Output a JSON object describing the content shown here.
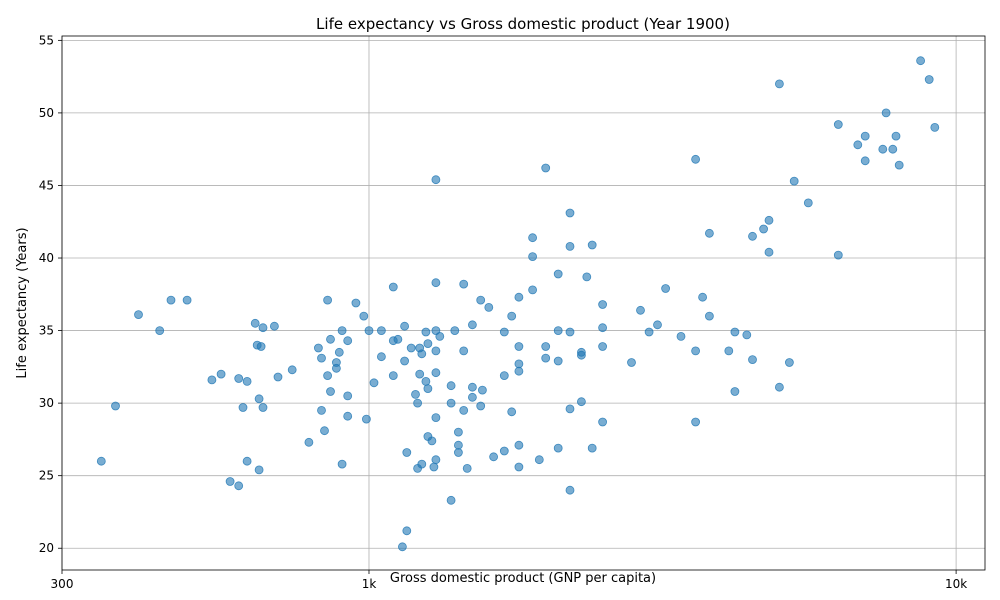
{
  "chart_data": {
    "type": "scatter",
    "title": "Life expectancy vs Gross domestic product (Year 1900)",
    "xlabel": "Gross domestic product (GNP per capita)",
    "ylabel": "Life expectancy (Years)",
    "xscale": "log",
    "xlim": [
      300,
      11200
    ],
    "ylim": [
      18.5,
      55.3
    ],
    "grid": true,
    "color": "#1f77b4",
    "x_ticks": [
      {
        "value": 300,
        "label": "300"
      },
      {
        "value": 1000,
        "label": "1k"
      },
      {
        "value": 10000,
        "label": "10k"
      }
    ],
    "y_ticks": [
      {
        "value": 20,
        "label": "20"
      },
      {
        "value": 25,
        "label": "25"
      },
      {
        "value": 30,
        "label": "30"
      },
      {
        "value": 35,
        "label": "35"
      },
      {
        "value": 40,
        "label": "40"
      },
      {
        "value": 45,
        "label": "45"
      },
      {
        "value": 50,
        "label": "50"
      },
      {
        "value": 55,
        "label": "55"
      }
    ],
    "points": [
      [
        8700,
        53.6
      ],
      [
        9000,
        52.3
      ],
      [
        5000,
        52.0
      ],
      [
        7600,
        50.0
      ],
      [
        9200,
        49.0
      ],
      [
        6300,
        49.2
      ],
      [
        7000,
        48.4
      ],
      [
        7900,
        48.4
      ],
      [
        7500,
        47.5
      ],
      [
        7800,
        47.5
      ],
      [
        6800,
        47.8
      ],
      [
        7000,
        46.7
      ],
      [
        8000,
        46.4
      ],
      [
        3600,
        46.8
      ],
      [
        2000,
        46.2
      ],
      [
        1300,
        45.4
      ],
      [
        5300,
        45.3
      ],
      [
        5600,
        43.8
      ],
      [
        2200,
        43.1
      ],
      [
        4800,
        42.6
      ],
      [
        4700,
        42.0
      ],
      [
        3800,
        41.7
      ],
      [
        4500,
        41.5
      ],
      [
        1900,
        41.4
      ],
      [
        2400,
        40.9
      ],
      [
        2200,
        40.8
      ],
      [
        4800,
        40.4
      ],
      [
        6300,
        40.2
      ],
      [
        1900,
        40.1
      ],
      [
        2100,
        38.9
      ],
      [
        2350,
        38.7
      ],
      [
        1300,
        38.3
      ],
      [
        1450,
        38.2
      ],
      [
        1100,
        38.0
      ],
      [
        3200,
        37.9
      ],
      [
        1900,
        37.8
      ],
      [
        1800,
        37.3
      ],
      [
        3700,
        37.3
      ],
      [
        1550,
        37.1
      ],
      [
        460,
        37.1
      ],
      [
        850,
        37.1
      ],
      [
        490,
        37.1
      ],
      [
        950,
        36.9
      ],
      [
        1600,
        36.6
      ],
      [
        2500,
        36.8
      ],
      [
        2900,
        36.4
      ],
      [
        1750,
        36.0
      ],
      [
        980,
        36.0
      ],
      [
        3800,
        36.0
      ],
      [
        405,
        36.1
      ],
      [
        640,
        35.5
      ],
      [
        660,
        35.2
      ],
      [
        690,
        35.3
      ],
      [
        1150,
        35.3
      ],
      [
        1500,
        35.4
      ],
      [
        2500,
        35.2
      ],
      [
        3100,
        35.4
      ],
      [
        1700,
        34.9
      ],
      [
        2100,
        35.0
      ],
      [
        1300,
        35.0
      ],
      [
        1400,
        35.0
      ],
      [
        1050,
        35.0
      ],
      [
        900,
        35.0
      ],
      [
        1000,
        35.0
      ],
      [
        440,
        35.0
      ],
      [
        1250,
        34.9
      ],
      [
        2200,
        34.9
      ],
      [
        3000,
        34.9
      ],
      [
        1320,
        34.6
      ],
      [
        3400,
        34.6
      ],
      [
        4400,
        34.7
      ],
      [
        4200,
        34.9
      ],
      [
        860,
        34.4
      ],
      [
        920,
        34.3
      ],
      [
        1100,
        34.3
      ],
      [
        1120,
        34.4
      ],
      [
        1260,
        34.1
      ],
      [
        1800,
        33.9
      ],
      [
        3600,
        33.6
      ],
      [
        1180,
        33.8
      ],
      [
        1220,
        33.8
      ],
      [
        820,
        33.8
      ],
      [
        645,
        34.0
      ],
      [
        655,
        33.9
      ],
      [
        2500,
        33.9
      ],
      [
        2000,
        33.9
      ],
      [
        1450,
        33.6
      ],
      [
        1300,
        33.6
      ],
      [
        1230,
        33.4
      ],
      [
        4100,
        33.6
      ],
      [
        2000,
        33.1
      ],
      [
        4500,
        33.0
      ],
      [
        1800,
        32.7
      ],
      [
        830,
        33.1
      ],
      [
        2300,
        33.5
      ],
      [
        1050,
        33.2
      ],
      [
        2300,
        33.3
      ],
      [
        2100,
        32.9
      ],
      [
        880,
        32.8
      ],
      [
        880,
        32.4
      ],
      [
        1150,
        32.9
      ],
      [
        890,
        33.5
      ],
      [
        1220,
        32.0
      ],
      [
        1300,
        32.1
      ],
      [
        1800,
        32.2
      ],
      [
        1700,
        31.9
      ],
      [
        740,
        32.3
      ],
      [
        560,
        32.0
      ],
      [
        600,
        31.7
      ],
      [
        620,
        31.5
      ],
      [
        540,
        31.6
      ],
      [
        700,
        31.8
      ],
      [
        850,
        31.9
      ],
      [
        1020,
        31.4
      ],
      [
        2800,
        32.8
      ],
      [
        5200,
        32.8
      ],
      [
        1250,
        31.5
      ],
      [
        1100,
        31.9
      ],
      [
        1500,
        31.1
      ],
      [
        1500,
        30.4
      ],
      [
        1560,
        30.9
      ],
      [
        1260,
        31.0
      ],
      [
        1380,
        31.2
      ],
      [
        860,
        30.8
      ],
      [
        1200,
        30.6
      ],
      [
        4200,
        30.8
      ],
      [
        610,
        29.7
      ],
      [
        650,
        30.3
      ],
      [
        660,
        29.7
      ],
      [
        920,
        30.5
      ],
      [
        1210,
        30.0
      ],
      [
        1380,
        30.0
      ],
      [
        1550,
        29.8
      ],
      [
        2300,
        30.1
      ],
      [
        5000,
        31.1
      ],
      [
        370,
        29.8
      ],
      [
        830,
        29.5
      ],
      [
        920,
        29.1
      ],
      [
        990,
        28.9
      ],
      [
        1300,
        29.0
      ],
      [
        1450,
        29.5
      ],
      [
        2200,
        29.6
      ],
      [
        1750,
        29.4
      ],
      [
        3600,
        28.7
      ],
      [
        2500,
        28.7
      ],
      [
        840,
        28.1
      ],
      [
        1420,
        28.0
      ],
      [
        1260,
        27.7
      ],
      [
        1280,
        27.4
      ],
      [
        1420,
        27.1
      ],
      [
        1800,
        27.1
      ],
      [
        1700,
        26.7
      ],
      [
        2100,
        26.9
      ],
      [
        2400,
        26.9
      ],
      [
        1420,
        26.6
      ],
      [
        1160,
        26.6
      ],
      [
        1300,
        26.1
      ],
      [
        1630,
        26.3
      ],
      [
        1950,
        26.1
      ],
      [
        790,
        27.3
      ],
      [
        350,
        26.0
      ],
      [
        620,
        26.0
      ],
      [
        650,
        25.4
      ],
      [
        900,
        25.8
      ],
      [
        1230,
        25.8
      ],
      [
        1290,
        25.6
      ],
      [
        1470,
        25.5
      ],
      [
        1210,
        25.5
      ],
      [
        1800,
        25.6
      ],
      [
        580,
        24.6
      ],
      [
        600,
        24.3
      ],
      [
        2200,
        24.0
      ],
      [
        1380,
        23.3
      ],
      [
        1160,
        21.2
      ],
      [
        1140,
        20.1
      ]
    ]
  }
}
